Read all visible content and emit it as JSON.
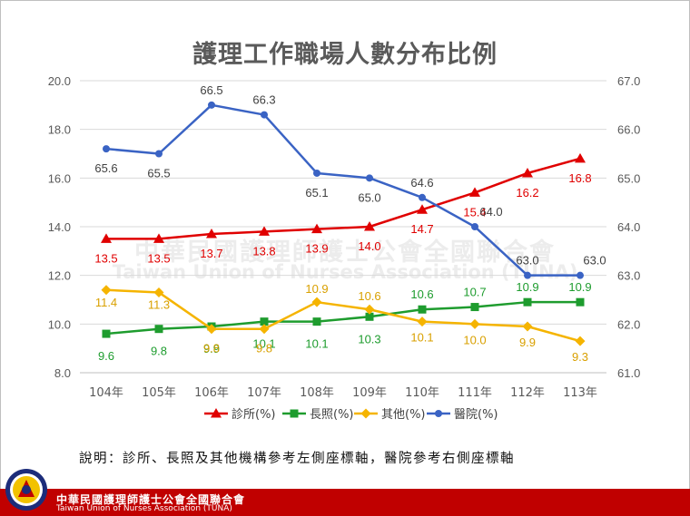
{
  "chart_data": {
    "type": "line",
    "title": "護理工作職場人數分布比例",
    "categories": [
      "104年",
      "105年",
      "106年",
      "107年",
      "108年",
      "109年",
      "110年",
      "111年",
      "112年",
      "113年"
    ],
    "y_left": {
      "min": 8.0,
      "max": 20.0,
      "step": 2.0,
      "ticks": [
        "8.0",
        "10.0",
        "12.0",
        "14.0",
        "16.0",
        "18.0",
        "20.0"
      ]
    },
    "y_right": {
      "min": 61.0,
      "max": 67.0,
      "step": 1.0,
      "ticks": [
        "61.0",
        "62.0",
        "63.0",
        "64.0",
        "65.0",
        "66.0",
        "67.0"
      ]
    },
    "grid": true,
    "legend_position": "bottom",
    "series": [
      {
        "name": "診所(%)",
        "axis": "left",
        "color": "#e00000",
        "marker": "triangle",
        "values": [
          13.5,
          13.5,
          13.7,
          13.8,
          13.9,
          14.0,
          14.7,
          15.4,
          16.2,
          16.8
        ],
        "labels": [
          "13.5",
          "13.5",
          "13.7",
          "13.8",
          "13.9",
          "14.0",
          "14.7",
          "15.4",
          "16.2",
          "16.8"
        ]
      },
      {
        "name": "長照(%)",
        "axis": "left",
        "color": "#1e9c2e",
        "marker": "square",
        "values": [
          9.6,
          9.8,
          9.9,
          10.1,
          10.1,
          10.3,
          10.6,
          10.7,
          10.9,
          10.9
        ],
        "labels": [
          "9.6",
          "9.8",
          "9.9",
          "10.1",
          "10.1",
          "10.3",
          "10.6",
          "10.7",
          "10.9",
          "10.9"
        ]
      },
      {
        "name": "其他(%)",
        "axis": "left",
        "color": "#f5b400",
        "marker": "diamond",
        "values": [
          11.4,
          11.3,
          9.8,
          9.8,
          10.9,
          10.6,
          10.1,
          10.0,
          9.9,
          9.3
        ],
        "labels": [
          "11.4",
          "11.3",
          "9.8",
          "9.8",
          "10.9",
          "10.6",
          "10.1",
          "10.0",
          "9.9",
          "9.3"
        ]
      },
      {
        "name": "醫院(%)",
        "axis": "right",
        "color": "#3a63c4",
        "marker": "circle",
        "values": [
          65.6,
          65.5,
          66.5,
          66.3,
          65.1,
          65.0,
          64.6,
          64.0,
          63.0,
          63.0
        ],
        "labels": [
          "65.6",
          "65.5",
          "66.5",
          "66.3",
          "65.1",
          "65.0",
          "64.6",
          "64.0",
          "63.0",
          "63.0"
        ]
      }
    ]
  },
  "note": "說明：診所、長照及其他機構參考左側座標軸，醫院參考右側座標軸",
  "watermark": {
    "zh": "中華民國護理師護士公會全國聯合會",
    "en": "Taiwan Union of Nurses Association (TUNA)"
  },
  "footer": {
    "org_zh": "中華民國護理師護士公會全國聯合會",
    "org_en": "Taiwan Union of Nurses Association (TUNA)"
  }
}
